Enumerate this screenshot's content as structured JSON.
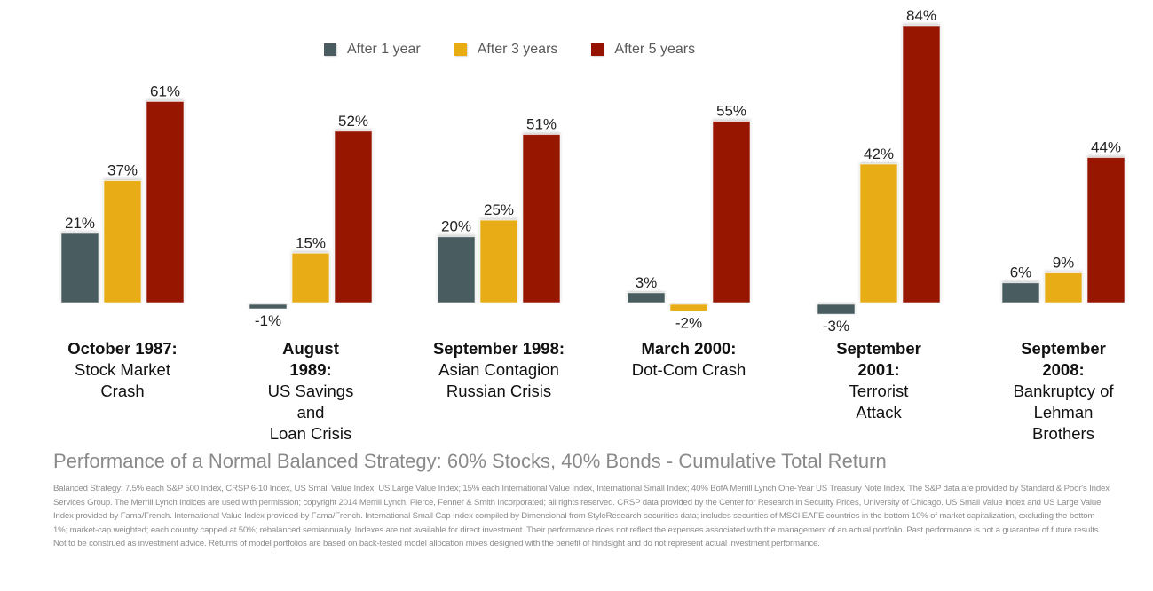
{
  "chart_data": {
    "type": "bar",
    "title": "Performance of a Normal Balanced Strategy: 60% Stocks, 40% Bonds - Cumulative Total Return",
    "xlabel": "",
    "ylabel": "",
    "ylim": [
      -3,
      84
    ],
    "grid": false,
    "legend_position": "top-center",
    "categories": [
      {
        "date": "October 1987",
        "date_suffix": ":",
        "date_bold_colon": false,
        "desc_lines": [
          "Stock Market",
          "Crash"
        ],
        "date_lines": [
          "October 1987:"
        ]
      },
      {
        "date": "August 1989",
        "date_lines": [
          "August",
          "1989:"
        ],
        "desc_lines": [
          "US Savings",
          "and",
          "Loan Crisis"
        ]
      },
      {
        "date": "September 1998",
        "date_lines": [
          "September 1998:"
        ],
        "desc_lines": [
          "Asian Contagion",
          "Russian Crisis"
        ]
      },
      {
        "date": "March 2000",
        "date_lines": [
          "March 2000:"
        ],
        "desc_lines": [
          "Dot-Com Crash"
        ]
      },
      {
        "date": "September 2001",
        "date_lines": [
          "September",
          "2001:"
        ],
        "desc_lines": [
          "Terrorist",
          "Attack"
        ]
      },
      {
        "date": "September 2008",
        "date_lines": [
          "September",
          "2008:"
        ],
        "desc_lines": [
          "Bankruptcy of",
          "Lehman",
          "Brothers"
        ]
      }
    ],
    "series": [
      {
        "name": "After 1 year",
        "color": "#4a5c5f",
        "values": [
          21,
          -1,
          20,
          3,
          -3,
          6
        ],
        "labels": [
          "21%",
          "-1%",
          "20%",
          "3%",
          "-3%",
          "6%"
        ]
      },
      {
        "name": "After 3 years",
        "color": "#e8ad14",
        "values": [
          37,
          15,
          25,
          -2,
          42,
          9
        ],
        "labels": [
          "37%",
          "15%",
          "25%",
          "-2%",
          "42%",
          "9%"
        ]
      },
      {
        "name": "After 5 years",
        "color": "#961200",
        "values": [
          61,
          52,
          51,
          55,
          84,
          44
        ],
        "labels": [
          "61%",
          "52%",
          "51%",
          "55%",
          "84%",
          "44%"
        ]
      }
    ]
  },
  "legend": [
    {
      "label": "After 1 year",
      "color": "#4a5c5f"
    },
    {
      "label": "After 3 years",
      "color": "#e8ad14"
    },
    {
      "label": "After 5 years",
      "color": "#961200"
    }
  ],
  "subtitle": "Performance of a Normal Balanced Strategy: 60% Stocks, 40% Bonds - Cumulative Total Return",
  "footnote": "Balanced Strategy: 7.5% each  S&P 500 Index, CRSP 6-10 Index, US Small Value Index, US Large Value Index; 15% each International Value Index, International Small Index; 40% BofA Merrill Lynch One-Year US Treasury Note Index. The S&P data are provided by Standard & Poor's Index Services Group. The Merrill Lynch Indices are used with permission; copyright 2014 Merrill Lynch, Pierce, Fenner & Smith Incorporated; all rights reserved. CRSP data provided by the Center for Research in Security Prices, University of Chicago. US Small Value Index and US Large Value Index provided by Fama/French. International Value Index provided by Fama/French. International Small Cap Index compiled by Dimensional from StyleResearch securities data; includes securities of MSCI EAFE countries in the bottom 10% of market capitalization, excluding the bottom 1%; market-cap weighted; each country capped at 50%; rebalanced semiannually. Indexes are not available for direct investment. Their performance does not reflect the expenses associated with the management of an actual portfolio. Past performance is not a guarantee of future results. Not to be construed as investment advice. Returns of model portfolios are based on back-tested model allocation mixes designed with the benefit of hindsight and do not represent actual investment performance."
}
